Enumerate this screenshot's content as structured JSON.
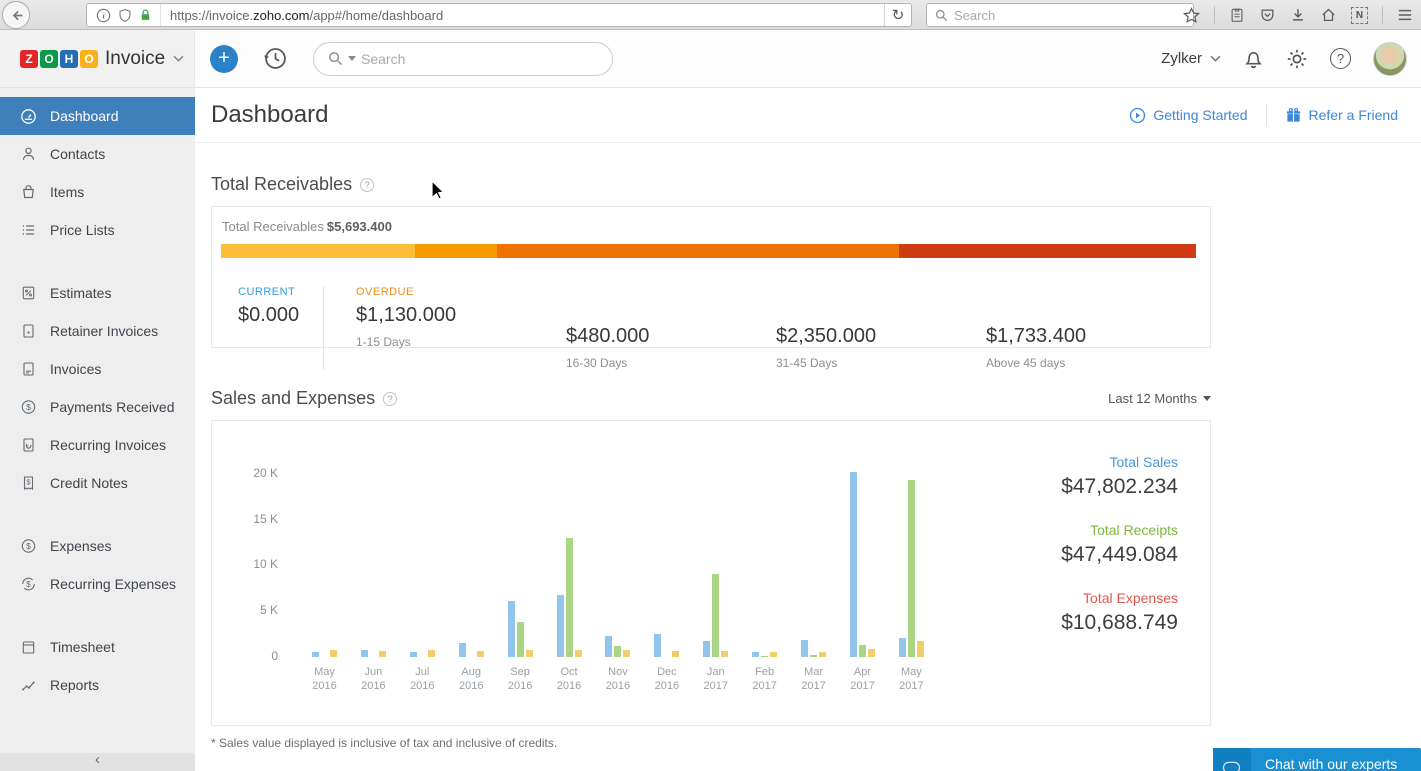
{
  "browser": {
    "url_prefix": "https://invoice.",
    "url_domain": "zoho.com",
    "url_path": "/app#/home/dashboard",
    "search_placeholder": "Search",
    "extension_badge": "N"
  },
  "topbar": {
    "brand_letters": [
      "Z",
      "O",
      "H",
      "O"
    ],
    "brand_name": "Invoice",
    "search_placeholder": "Search",
    "org": "Zylker"
  },
  "sidebar": {
    "items": [
      {
        "label": "Dashboard",
        "active": true
      },
      {
        "label": "Contacts"
      },
      {
        "label": "Items"
      },
      {
        "label": "Price Lists"
      },
      {
        "label": "Estimates"
      },
      {
        "label": "Retainer Invoices"
      },
      {
        "label": "Invoices"
      },
      {
        "label": "Payments Received"
      },
      {
        "label": "Recurring Invoices"
      },
      {
        "label": "Credit Notes"
      },
      {
        "label": "Expenses"
      },
      {
        "label": "Recurring Expenses"
      },
      {
        "label": "Timesheet"
      },
      {
        "label": "Reports"
      }
    ]
  },
  "header": {
    "title": "Dashboard",
    "getting_started": "Getting Started",
    "refer": "Refer a Friend"
  },
  "receivables": {
    "section_title": "Total Receivables",
    "summary_label": "Total Receivables",
    "summary_value": "$5,693.400",
    "segments": [
      {
        "pct": 19.85,
        "color": "#fcbd3a"
      },
      {
        "pct": 8.43,
        "color": "#f59b00"
      },
      {
        "pct": 41.28,
        "color": "#ed7103"
      },
      {
        "pct": 30.44,
        "color": "#cf3c14"
      }
    ],
    "current": {
      "label": "CURRENT",
      "amount": "$0.000"
    },
    "overdue_label": "OVERDUE",
    "buckets": [
      {
        "amount": "$1,130.000",
        "period": "1-15 Days"
      },
      {
        "amount": "$480.000",
        "period": "16-30 Days"
      },
      {
        "amount": "$2,350.000",
        "period": "31-45 Days"
      },
      {
        "amount": "$1,733.400",
        "period": "Above 45 days"
      }
    ]
  },
  "sales": {
    "section_title": "Sales and Expenses",
    "range_label": "Last 12 Months",
    "totals": [
      {
        "label": "Total Sales",
        "value": "$47,802.234",
        "color": "#4a96d2"
      },
      {
        "label": "Total Receipts",
        "value": "$47,449.084",
        "color": "#7cb93e"
      },
      {
        "label": "Total Expenses",
        "value": "$10,688.749",
        "color": "#e5564d"
      }
    ],
    "footnote": "* Sales value displayed is inclusive of tax and inclusive of credits."
  },
  "chart_data": {
    "type": "bar",
    "title": "Sales and Expenses",
    "categories": [
      "May 2016",
      "Jun 2016",
      "Jul 2016",
      "Aug 2016",
      "Sep 2016",
      "Oct 2016",
      "Nov 2016",
      "Dec 2016",
      "Jan 2017",
      "Feb 2017",
      "Mar 2017",
      "Apr 2017",
      "May 2017"
    ],
    "series": [
      {
        "name": "Sales",
        "color": "#92c5ec",
        "values": [
          550,
          800,
          550,
          1500,
          6100,
          6800,
          2250,
          2500,
          1700,
          600,
          1900,
          20200,
          2100
        ]
      },
      {
        "name": "Receipts",
        "color": "#aad584",
        "values": [
          0,
          0,
          0,
          0,
          3850,
          12950,
          1200,
          0,
          9100,
          150,
          250,
          1300,
          19300
        ]
      },
      {
        "name": "Expenses",
        "color": "#f2cd6b",
        "values": [
          800,
          700,
          800,
          700,
          800,
          800,
          800,
          700,
          700,
          600,
          600,
          850,
          1800
        ]
      }
    ],
    "yticks": [
      {
        "label": "20 K",
        "value": 20000
      },
      {
        "label": "15 K",
        "value": 15000
      },
      {
        "label": "10 K",
        "value": 10000
      },
      {
        "label": "5 K",
        "value": 5000
      },
      {
        "label": "0",
        "value": 0
      }
    ],
    "ylim": [
      0,
      22500
    ],
    "xlabel": "",
    "ylabel": "",
    "grid": false,
    "legend": "none"
  },
  "chat": {
    "label": "Chat with our experts"
  }
}
